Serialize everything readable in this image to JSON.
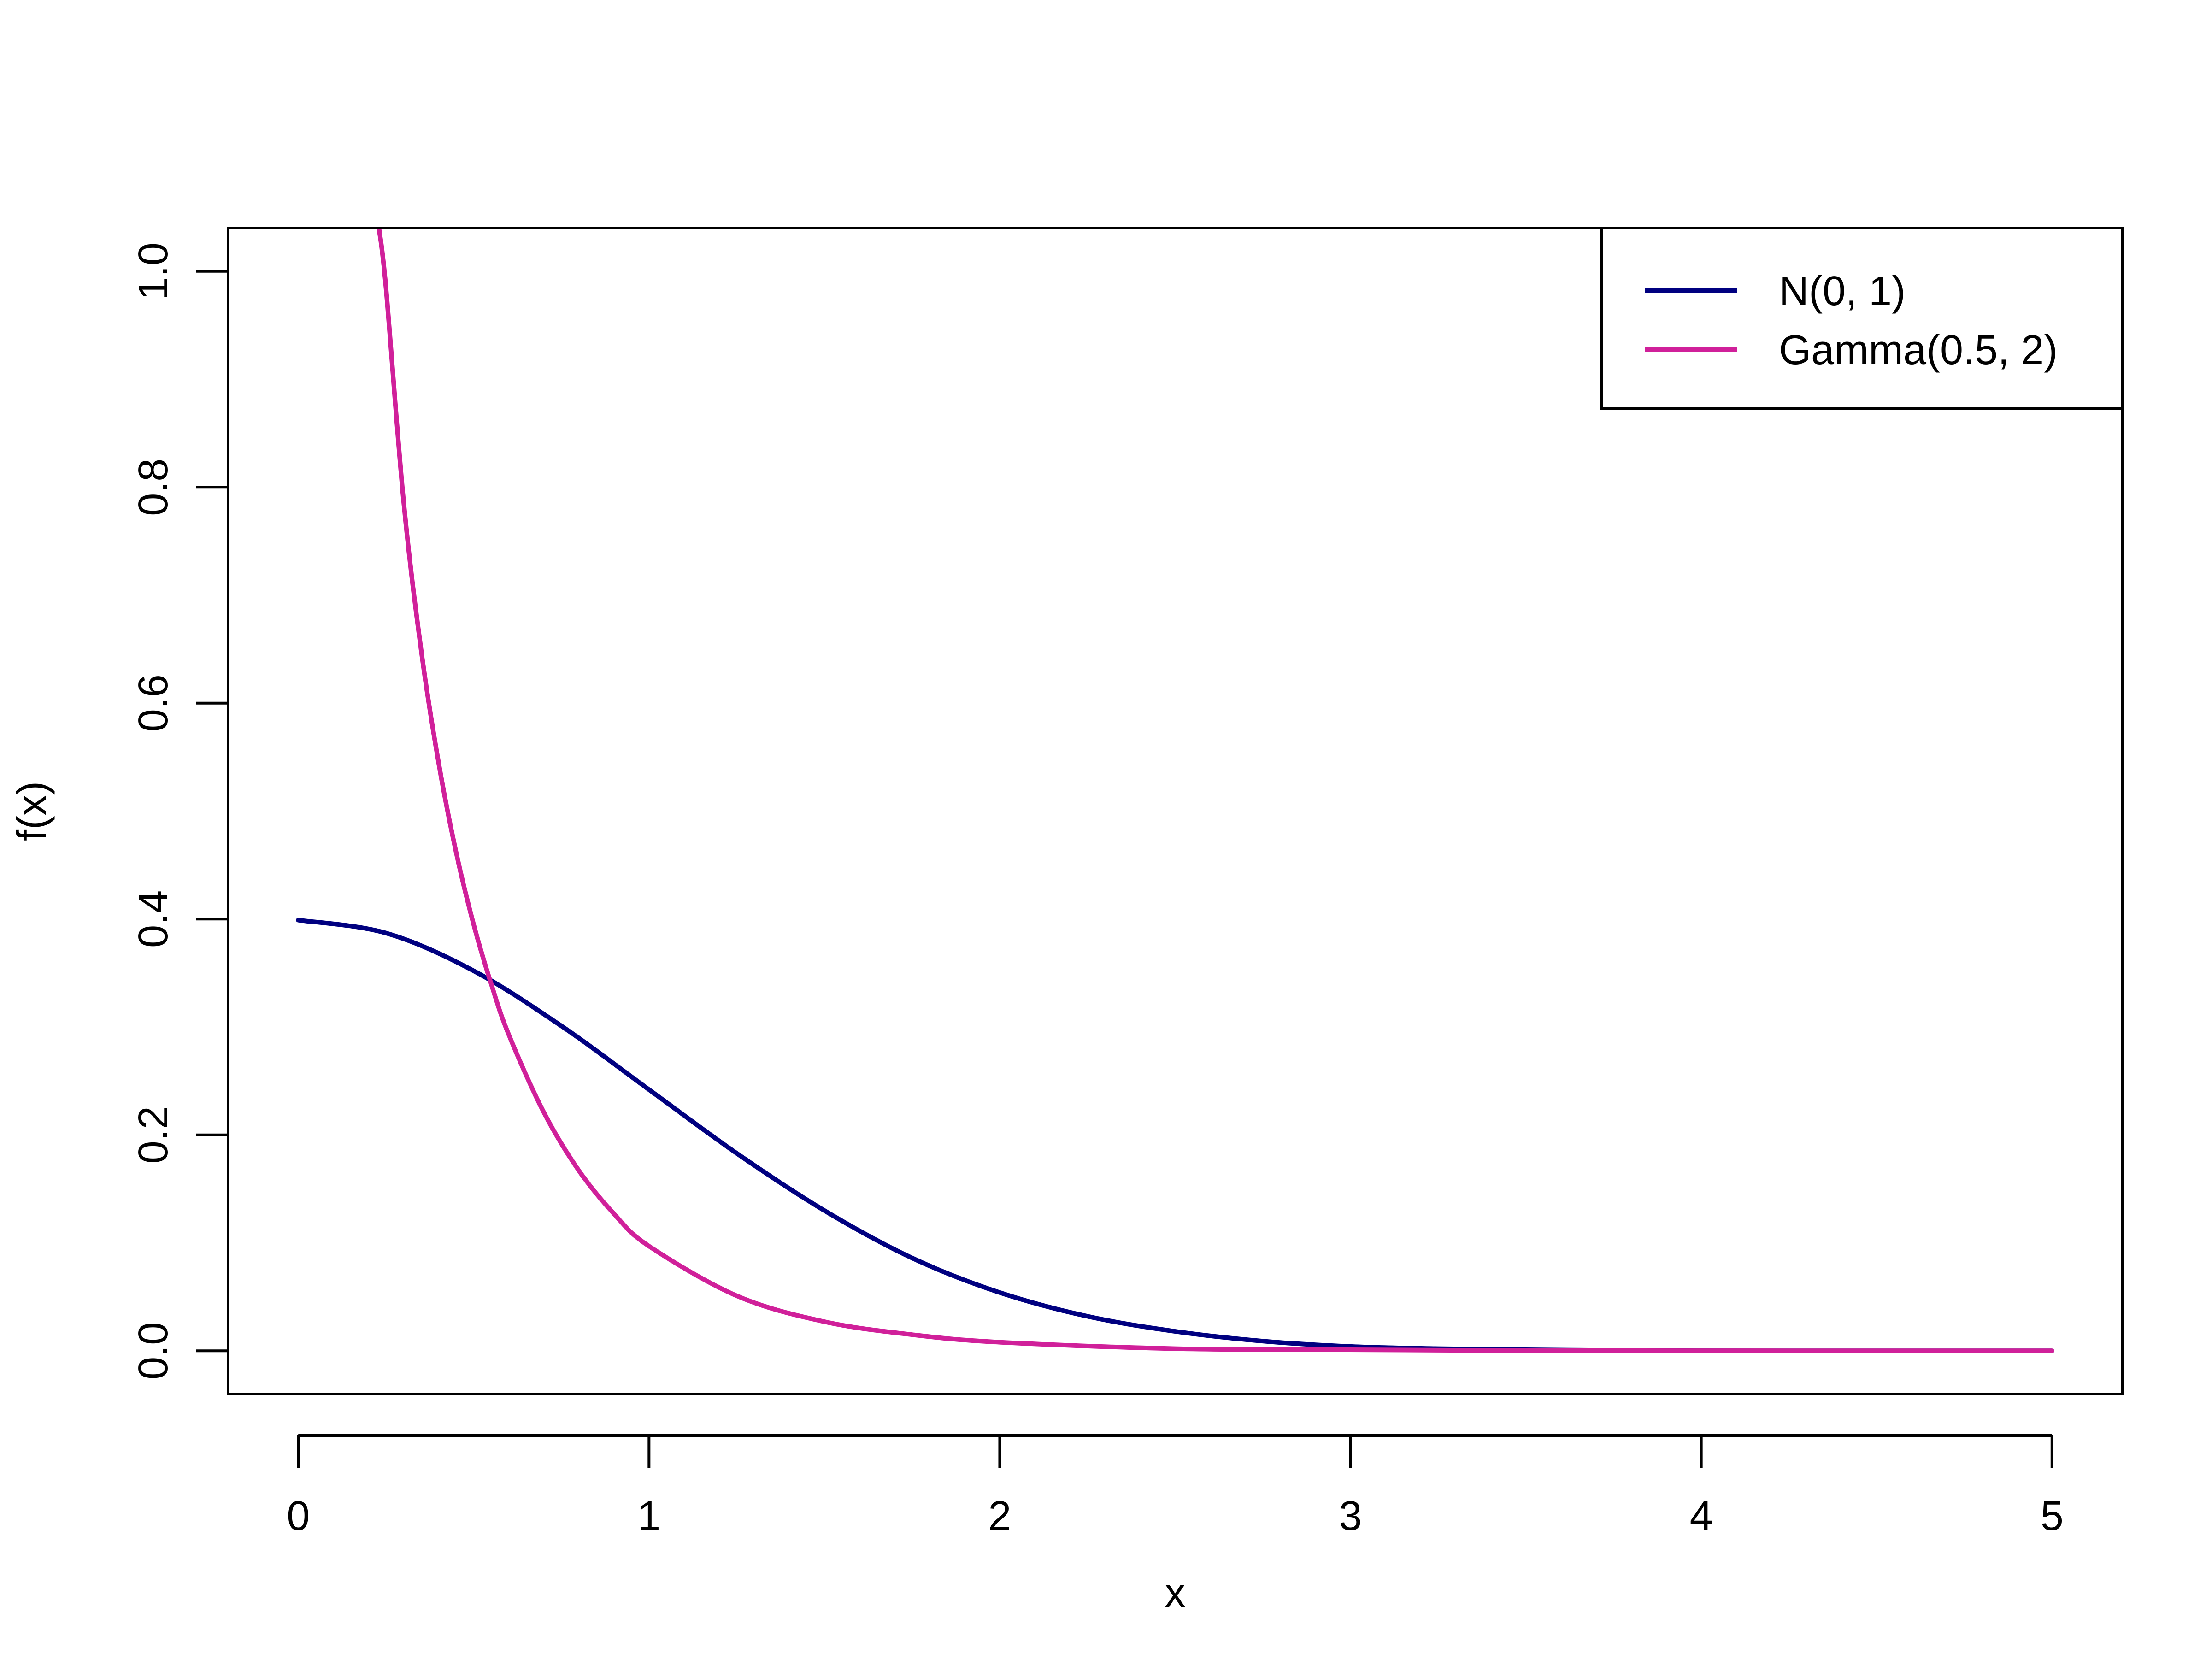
{
  "chart_data": {
    "type": "line",
    "title": "",
    "xlabel": "x",
    "ylabel": "f(x)",
    "xlim": [
      -0.2,
      5.2
    ],
    "ylim": [
      -0.04,
      1.04
    ],
    "x_ticks": [
      0,
      1,
      2,
      3,
      4,
      5
    ],
    "x_tick_labels": [
      "0",
      "1",
      "2",
      "3",
      "4",
      "5"
    ],
    "y_ticks": [
      0.0,
      0.2,
      0.4,
      0.6,
      0.8,
      1.0
    ],
    "y_tick_labels": [
      "0.0",
      "0.2",
      "0.4",
      "0.6",
      "0.8",
      "1.0"
    ],
    "grid": false,
    "legend_position": "top-right",
    "series": [
      {
        "name": "N(0, 1)",
        "color": "#000080",
        "x": [
          0,
          0.25,
          0.5,
          0.75,
          1,
          1.25,
          1.5,
          1.75,
          2,
          2.25,
          2.5,
          2.75,
          3,
          3.25,
          3.5,
          3.75,
          4,
          4.25,
          4.5,
          4.75,
          5
        ],
        "y": [
          0.399,
          0.387,
          0.352,
          0.301,
          0.242,
          0.183,
          0.13,
          0.086,
          0.054,
          0.032,
          0.018,
          0.009,
          0.004,
          0.002,
          0.001,
          0.0004,
          0.0001,
          0.0,
          0.0,
          0.0,
          0.0
        ]
      },
      {
        "name": "Gamma(0.5, 2)",
        "color": "#d0209a",
        "x": [
          0.23,
          0.25,
          0.3,
          0.35,
          0.4,
          0.45,
          0.5,
          0.55,
          0.6,
          0.7,
          0.8,
          0.9,
          1,
          1.25,
          1.5,
          1.75,
          2,
          2.5,
          3,
          3.5,
          4,
          4.5,
          5
        ],
        "y": [
          1.04,
          0.985,
          0.788,
          0.65,
          0.545,
          0.462,
          0.395,
          0.34,
          0.293,
          0.221,
          0.167,
          0.127,
          0.097,
          0.051,
          0.027,
          0.015,
          0.008,
          0.002,
          0.001,
          0.0003,
          0.0001,
          0.0,
          0.0
        ]
      }
    ]
  }
}
